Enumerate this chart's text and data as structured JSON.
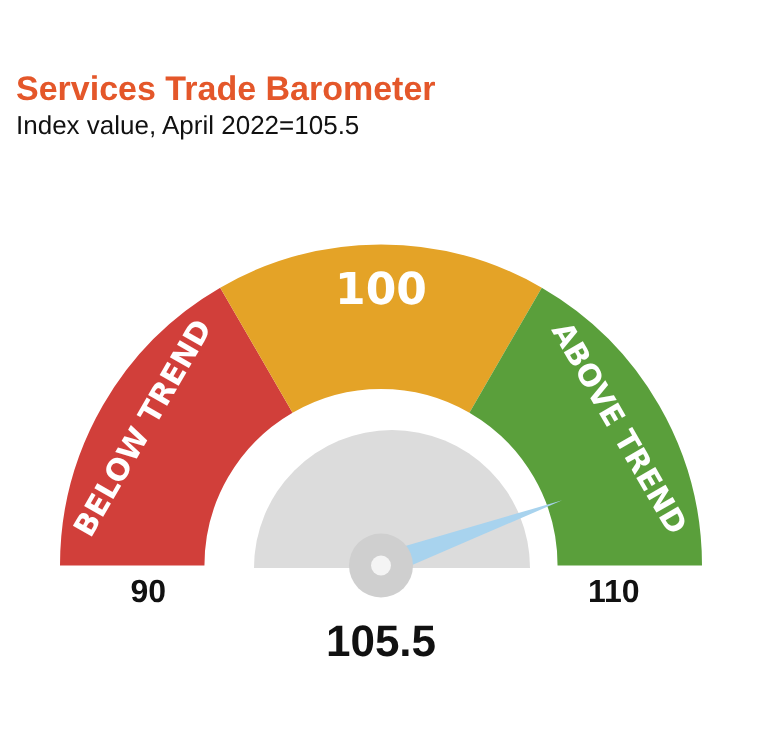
{
  "chart_data": {
    "type": "donut",
    "title": "Services Trade Barometer",
    "subtitle": "Index value, April 2022=105.5",
    "categories": [
      "BELOW TREND",
      "100",
      "ABOVE TREND"
    ],
    "values": [
      33.3,
      33.4,
      33.3
    ],
    "colors": [
      "#d13f3a",
      "#e4a327",
      "#5a9f3b"
    ],
    "needle": "ABOVE TREND",
    "legend": false,
    "annotations": [
      "90",
      "110",
      "105.5"
    ]
  }
}
